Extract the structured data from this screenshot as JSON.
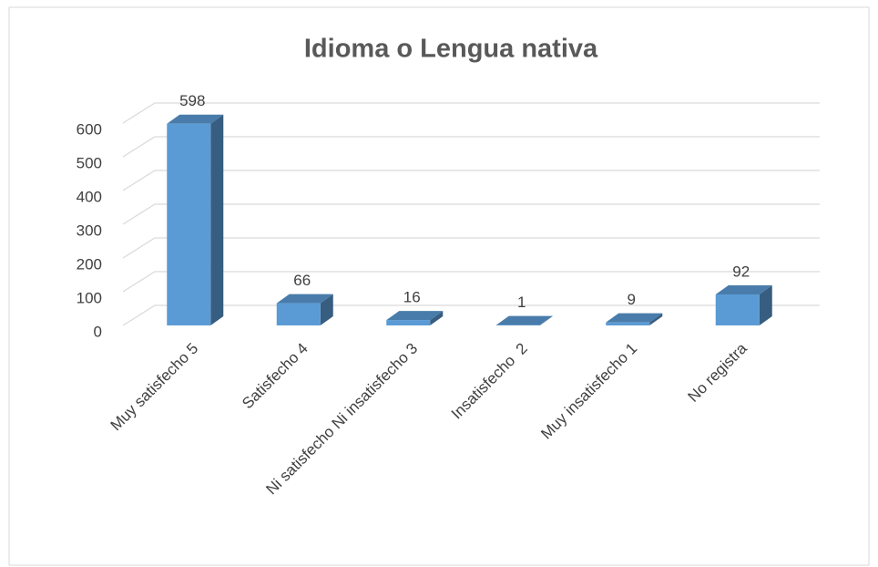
{
  "chart_data": {
    "type": "bar3d",
    "title": "Idioma o Lengua nativa",
    "categories": [
      "Muy satisfecho 5",
      "Satisfecho 4",
      "Ni satisfecho Ni insatisfecho 3",
      "Insatisfecho  2",
      "Muy insatisfecho 1",
      "No registra"
    ],
    "values": [
      598,
      66,
      16,
      1,
      9,
      92
    ],
    "color": "#5b9bd5",
    "ylim": [
      0,
      600
    ],
    "yticks": [
      0,
      100,
      200,
      300,
      400,
      500,
      600
    ],
    "grid": true
  }
}
